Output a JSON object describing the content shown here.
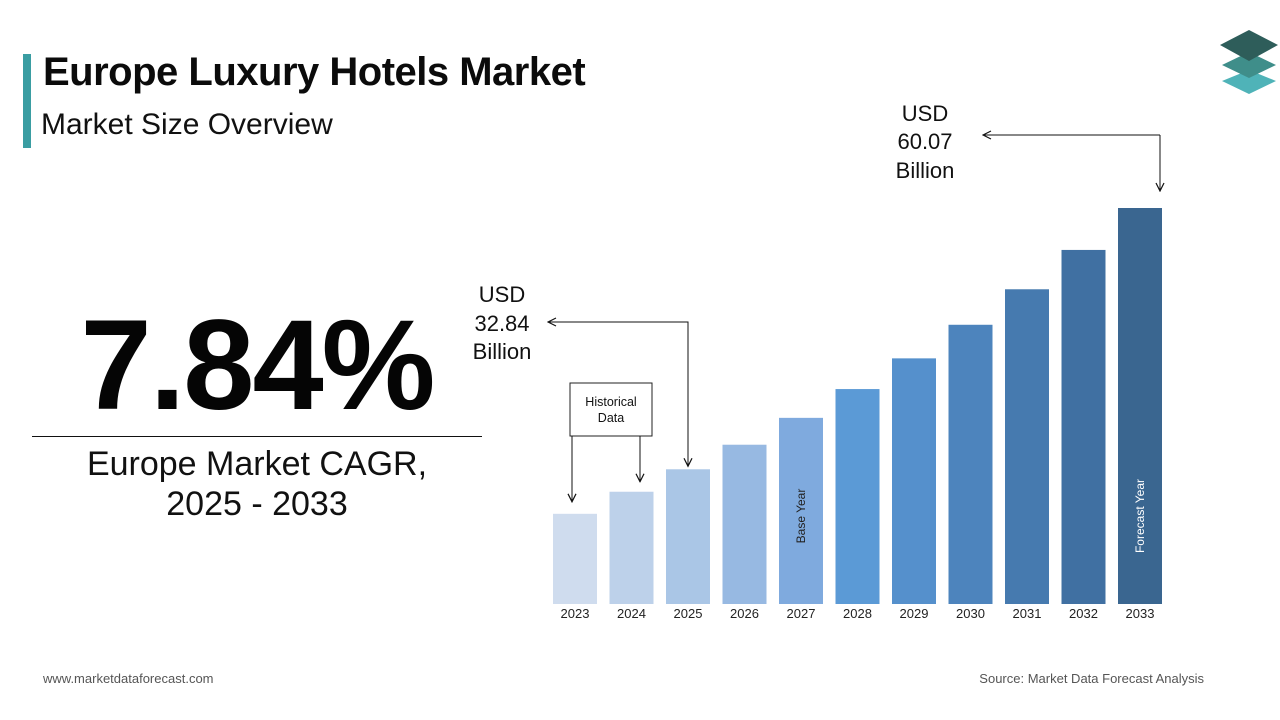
{
  "header": {
    "title": "Europe Luxury Hotels Market",
    "subtitle": "Market Size Overview"
  },
  "logo": {
    "icon": "stacked-layers-icon",
    "colors": [
      "#2e5d5a",
      "#3f8e8a",
      "#4fb3b8"
    ]
  },
  "cagr": {
    "value": "7.84%",
    "label_line1": "Europe Market CAGR,",
    "label_line2": "2025 - 2033"
  },
  "footer": {
    "website": "www.marketdataforecast.com",
    "source": "Source: Market Data Forecast Analysis"
  },
  "chart_data": {
    "type": "bar",
    "categories": [
      "2023",
      "2024",
      "2025",
      "2026",
      "2027",
      "2028",
      "2029",
      "2030",
      "2031",
      "2032",
      "2033"
    ],
    "values": [
      28.2,
      30.5,
      32.84,
      35.4,
      38.2,
      41.2,
      44.4,
      47.9,
      51.6,
      55.7,
      60.07
    ],
    "ylim": [
      18.8,
      60.07
    ],
    "grid": false,
    "bar_colors": [
      "#cfdcee",
      "#bdd1ea",
      "#aac6e6",
      "#97b9e2",
      "#7faade",
      "#5b9ad6",
      "#5590cc",
      "#4d84bd",
      "#467aaf",
      "#4070a2",
      "#3a6690"
    ],
    "annotations": {
      "start": {
        "line1": "USD",
        "line2": "32.84",
        "line3": "Billion",
        "target": "2025"
      },
      "end": {
        "line1": "USD",
        "line2": "60.07",
        "line3": "Billion",
        "target": "2033"
      },
      "historical": {
        "line1": "Historical",
        "line2": "Data",
        "targets": [
          "2023",
          "2024"
        ]
      },
      "base_year": {
        "label": "Base Year",
        "target": "2027"
      },
      "forecast_year": {
        "label": "Forecast Year",
        "target": "2033"
      }
    }
  }
}
